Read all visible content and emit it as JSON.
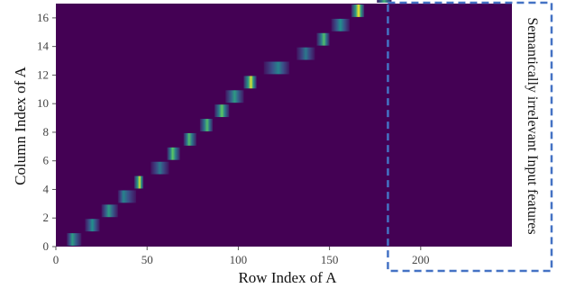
{
  "chart_data": {
    "type": "heatmap",
    "title": "",
    "xlabel": "Row Index of A",
    "ylabel": "Column Index of A",
    "xlim": [
      0,
      250
    ],
    "ylim": [
      0,
      17
    ],
    "xticks": [
      0,
      50,
      100,
      150,
      200
    ],
    "yticks": [
      0,
      2,
      4,
      6,
      8,
      10,
      12,
      14,
      16
    ],
    "colormap": "viridis",
    "background_color": "#440154",
    "grid": false,
    "cells_note": "each entry: row (column index of A), x range of the bright segment (row index of A), peak column, peak intensity 0-1",
    "cells": [
      {
        "row": 0,
        "x_start": 6,
        "x_end": 14,
        "peak_x": 9,
        "intensity": 0.55
      },
      {
        "row": 1,
        "x_start": 16,
        "x_end": 24,
        "peak_x": 20,
        "intensity": 0.5
      },
      {
        "row": 2,
        "x_start": 25,
        "x_end": 34,
        "peak_x": 29,
        "intensity": 0.55
      },
      {
        "row": 3,
        "x_start": 34,
        "x_end": 44,
        "peak_x": 37,
        "intensity": 0.45
      },
      {
        "row": 4,
        "x_start": 43,
        "x_end": 48,
        "peak_x": 46,
        "intensity": 0.95
      },
      {
        "row": 5,
        "x_start": 52,
        "x_end": 62,
        "peak_x": 57,
        "intensity": 0.4
      },
      {
        "row": 6,
        "x_start": 61,
        "x_end": 68,
        "peak_x": 64,
        "intensity": 0.75
      },
      {
        "row": 7,
        "x_start": 70,
        "x_end": 77,
        "peak_x": 73,
        "intensity": 0.7
      },
      {
        "row": 8,
        "x_start": 79,
        "x_end": 86,
        "peak_x": 83,
        "intensity": 0.7
      },
      {
        "row": 9,
        "x_start": 87,
        "x_end": 95,
        "peak_x": 91,
        "intensity": 0.75
      },
      {
        "row": 10,
        "x_start": 93,
        "x_end": 103,
        "peak_x": 98,
        "intensity": 0.55
      },
      {
        "row": 11,
        "x_start": 103,
        "x_end": 110,
        "peak_x": 107,
        "intensity": 0.95
      },
      {
        "row": 12,
        "x_start": 114,
        "x_end": 128,
        "peak_x": 122,
        "intensity": 0.45
      },
      {
        "row": 13,
        "x_start": 132,
        "x_end": 142,
        "peak_x": 137,
        "intensity": 0.4
      },
      {
        "row": 14,
        "x_start": 143,
        "x_end": 150,
        "peak_x": 147,
        "intensity": 0.7
      },
      {
        "row": 15,
        "x_start": 151,
        "x_end": 161,
        "peak_x": 156,
        "intensity": 0.5
      },
      {
        "row": 16,
        "x_start": 162,
        "x_end": 169,
        "peak_x": 166,
        "intensity": 1.0
      },
      {
        "row": 17,
        "x_start": 176,
        "x_end": 184,
        "peak_x": 180,
        "intensity": 0.65
      }
    ],
    "highlight_region": {
      "x_range": [
        184,
        250
      ],
      "label": "Semantically irrelevant Input features",
      "border_color": "#4472C4",
      "border_style": "dashed"
    }
  }
}
